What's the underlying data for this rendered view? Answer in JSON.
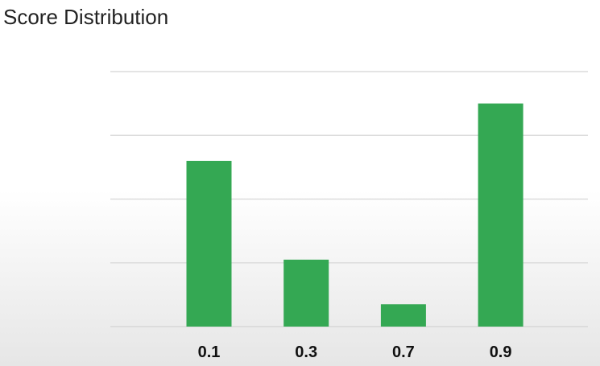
{
  "chart_data": {
    "type": "bar",
    "title": "Score Distribution",
    "categories": [
      "0.1",
      "0.3",
      "0.7",
      "0.9"
    ],
    "values": [
      52,
      21,
      7,
      70
    ],
    "ylim": [
      0,
      80
    ],
    "grid": true,
    "bar_color": "#34a853",
    "grid_color": "#dcdcdc"
  }
}
